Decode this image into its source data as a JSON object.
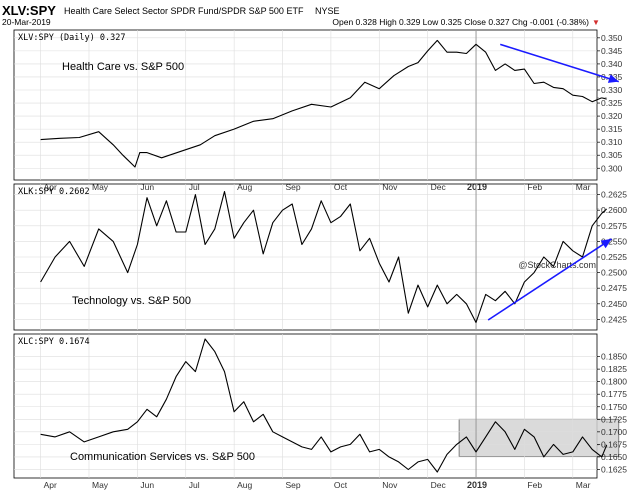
{
  "header": {
    "symbol": "XLV:SPY",
    "description": "Health Care Select Sector SPDR Fund/SPDR S&P 500 ETF",
    "exchange": "NYSE",
    "date": "20-Mar-2019",
    "ohlc": "Open 0.328  High 0.329  Low 0.325  Close 0.327  Chg -0.001 (-0.38%)",
    "change_marker": "▼",
    "watermark": "@StockCharts.com"
  },
  "colors": {
    "series": "#000000",
    "trend_arrow": "#1a1aff",
    "box_fill": "#d3d3d3",
    "grid": "#dddddd",
    "axis_text": "#333333",
    "down_marker": "#d32f2f"
  },
  "x_axis": {
    "months": [
      "Apr",
      "May",
      "Jun",
      "Jul",
      "Aug",
      "Sep",
      "Oct",
      "Nov",
      "Dec",
      "2019",
      "Feb",
      "Mar"
    ],
    "year_label": "2019"
  },
  "chart_data": [
    {
      "type": "line",
      "legend": "XLV:SPY (Daily) 0.327",
      "annotation": "Health Care vs. S&P 500",
      "ylim": [
        0.2955,
        0.353
      ],
      "y_ticks": [
        0.3,
        0.305,
        0.31,
        0.315,
        0.32,
        0.325,
        0.33,
        0.335,
        0.34,
        0.345,
        0.35
      ],
      "y_tick_labels": [
        "0.300",
        "0.305",
        "0.310",
        "0.315",
        "0.320",
        "0.325",
        "0.330",
        "0.335",
        "0.340",
        "0.345",
        "0.350"
      ],
      "last_value": 0.327,
      "x": [
        0,
        0.4,
        0.8,
        1.2,
        1.5,
        1.7,
        1.95,
        2.05,
        2.2,
        2.5,
        2.9,
        3.3,
        3.6,
        4.0,
        4.4,
        4.8,
        5.2,
        5.6,
        6.0,
        6.4,
        6.7,
        7.0,
        7.3,
        7.6,
        7.8,
        8.0,
        8.2,
        8.4,
        8.6,
        8.8,
        9.0,
        9.2,
        9.4,
        9.6,
        9.8,
        10.0,
        10.2,
        10.4,
        10.6,
        10.8,
        11.0,
        11.2,
        11.4,
        11.6,
        11.7
      ],
      "values": [
        0.311,
        0.3115,
        0.3118,
        0.314,
        0.309,
        0.305,
        0.3005,
        0.306,
        0.306,
        0.304,
        0.3065,
        0.309,
        0.3125,
        0.315,
        0.318,
        0.319,
        0.322,
        0.3245,
        0.3235,
        0.327,
        0.333,
        0.3305,
        0.3355,
        0.339,
        0.3405,
        0.345,
        0.349,
        0.3445,
        0.3445,
        0.344,
        0.3475,
        0.3445,
        0.3375,
        0.34,
        0.3375,
        0.338,
        0.3325,
        0.333,
        0.331,
        0.3305,
        0.328,
        0.3275,
        0.3255,
        0.327,
        0.3265
      ],
      "trend_arrow": {
        "from": [
          9.5,
          0.3475
        ],
        "to": [
          11.95,
          0.3332
        ]
      }
    },
    {
      "type": "line",
      "legend": "XLK:SPY 0.2602",
      "annotation": "Technology vs. S&P 500",
      "ylim": [
        0.2408,
        0.2642
      ],
      "y_ticks": [
        0.2425,
        0.245,
        0.2475,
        0.25,
        0.2525,
        0.255,
        0.2575,
        0.26,
        0.2625
      ],
      "y_tick_labels": [
        "0.2425",
        "0.2450",
        "0.2475",
        "0.2500",
        "0.2525",
        "0.2550",
        "0.2575",
        "0.2600",
        "0.2625"
      ],
      "last_value": 0.2602,
      "x": [
        0,
        0.3,
        0.6,
        0.9,
        1.2,
        1.5,
        1.8,
        2.0,
        2.2,
        2.4,
        2.6,
        2.8,
        3.0,
        3.2,
        3.4,
        3.6,
        3.8,
        4.0,
        4.2,
        4.4,
        4.6,
        4.8,
        5.0,
        5.2,
        5.4,
        5.6,
        5.8,
        6.0,
        6.2,
        6.4,
        6.6,
        6.8,
        7.0,
        7.2,
        7.4,
        7.6,
        7.8,
        8.0,
        8.2,
        8.4,
        8.6,
        8.8,
        9.0,
        9.2,
        9.4,
        9.6,
        9.8,
        10.0,
        10.2,
        10.4,
        10.6,
        10.8,
        11.0,
        11.2,
        11.4,
        11.6,
        11.7
      ],
      "values": [
        0.2485,
        0.2525,
        0.255,
        0.251,
        0.257,
        0.255,
        0.25,
        0.2545,
        0.262,
        0.2575,
        0.2615,
        0.2565,
        0.2565,
        0.2625,
        0.2545,
        0.257,
        0.263,
        0.2555,
        0.258,
        0.26,
        0.253,
        0.258,
        0.26,
        0.261,
        0.2545,
        0.257,
        0.2615,
        0.258,
        0.259,
        0.261,
        0.2535,
        0.2555,
        0.2515,
        0.2485,
        0.2525,
        0.2435,
        0.248,
        0.2445,
        0.248,
        0.245,
        0.2465,
        0.245,
        0.242,
        0.2465,
        0.2455,
        0.247,
        0.245,
        0.2485,
        0.25,
        0.2525,
        0.251,
        0.255,
        0.2535,
        0.2525,
        0.2575,
        0.2595,
        0.2602
      ],
      "trend_arrow": {
        "from": [
          9.25,
          0.2424
        ],
        "to": [
          11.8,
          0.2554
        ]
      }
    },
    {
      "type": "line",
      "legend": "XLC:SPY 0.1674",
      "annotation": "Communication Services vs. S&P 500",
      "ylim": [
        0.1608,
        0.1895
      ],
      "y_ticks": [
        0.1625,
        0.165,
        0.1675,
        0.17,
        0.1725,
        0.175,
        0.1775,
        0.18,
        0.1825,
        0.185
      ],
      "y_tick_labels": [
        "0.1625",
        "0.1650",
        "0.1675",
        "0.1700",
        "0.1725",
        "0.1750",
        "0.1775",
        "0.1800",
        "0.1825",
        "0.1850"
      ],
      "last_value": 0.1674,
      "x": [
        0,
        0.3,
        0.6,
        0.9,
        1.2,
        1.5,
        1.8,
        2.0,
        2.2,
        2.4,
        2.6,
        2.8,
        3.0,
        3.2,
        3.4,
        3.6,
        3.8,
        4.0,
        4.2,
        4.4,
        4.6,
        4.8,
        5.0,
        5.2,
        5.4,
        5.6,
        5.8,
        6.0,
        6.2,
        6.4,
        6.6,
        6.8,
        7.0,
        7.2,
        7.4,
        7.6,
        7.8,
        8.0,
        8.2,
        8.4,
        8.6,
        8.8,
        9.0,
        9.2,
        9.4,
        9.6,
        9.8,
        10.0,
        10.2,
        10.4,
        10.6,
        10.8,
        11.0,
        11.2,
        11.4,
        11.6,
        11.7
      ],
      "values": [
        0.1695,
        0.169,
        0.17,
        0.168,
        0.169,
        0.17,
        0.1705,
        0.172,
        0.1745,
        0.173,
        0.1765,
        0.181,
        0.184,
        0.182,
        0.1885,
        0.186,
        0.182,
        0.174,
        0.176,
        0.172,
        0.1735,
        0.17,
        0.169,
        0.168,
        0.167,
        0.1665,
        0.169,
        0.166,
        0.167,
        0.1675,
        0.1695,
        0.166,
        0.1665,
        0.165,
        0.164,
        0.1625,
        0.164,
        0.1645,
        0.162,
        0.1655,
        0.1675,
        0.169,
        0.166,
        0.169,
        0.172,
        0.17,
        0.1665,
        0.1705,
        0.169,
        0.165,
        0.1675,
        0.1655,
        0.166,
        0.169,
        0.1665,
        0.165,
        0.1674
      ],
      "range_box": {
        "x": [
          8.65,
          11.95
        ],
        "y": [
          0.1651,
          0.1725
        ]
      }
    }
  ]
}
